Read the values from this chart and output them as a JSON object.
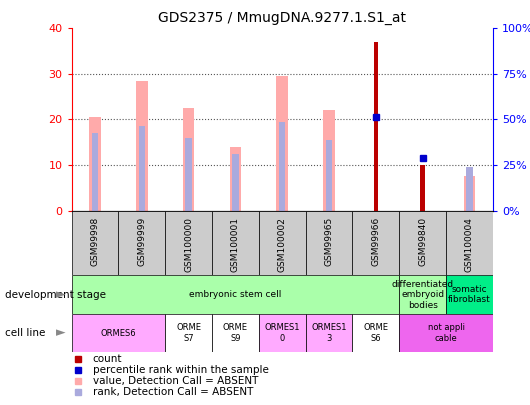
{
  "title": "GDS2375 / MmugDNA.9277.1.S1_at",
  "samples": [
    "GSM99998",
    "GSM99999",
    "GSM100000",
    "GSM100001",
    "GSM100002",
    "GSM99965",
    "GSM99966",
    "GSM99840",
    "GSM100004"
  ],
  "count_values": [
    0,
    0,
    0,
    0,
    0,
    0,
    37,
    10,
    0
  ],
  "percentile_rank_values": [
    0,
    0,
    0,
    0,
    0,
    0,
    20.5,
    11.5,
    0
  ],
  "absent_value": [
    20.5,
    28.5,
    22.5,
    14.0,
    29.5,
    22.0,
    0,
    0,
    7.5
  ],
  "absent_rank": [
    17.0,
    18.5,
    16.0,
    12.5,
    19.5,
    15.5,
    0,
    0,
    9.5
  ],
  "count_color": "#bb0000",
  "percentile_color": "#0000cc",
  "absent_value_color": "#ffaaaa",
  "absent_rank_color": "#aaaadd",
  "ylim_left": [
    0,
    40
  ],
  "ylim_right": [
    0,
    100
  ],
  "yticks_left": [
    0,
    10,
    20,
    30,
    40
  ],
  "yticks_right": [
    0,
    25,
    50,
    75,
    100
  ],
  "background_color": "#ffffff",
  "dev_stage_groups": [
    {
      "label": "embryonic stem cell",
      "start": 0,
      "end": 6,
      "color": "#aaffaa"
    },
    {
      "label": "differentiated\nembryoid\nbodies",
      "start": 7,
      "end": 7,
      "color": "#aaffaa"
    },
    {
      "label": "somatic\nfibroblast",
      "start": 8,
      "end": 8,
      "color": "#00ee88"
    }
  ],
  "cell_line_groups": [
    {
      "label": "ORMES6",
      "start": 0,
      "end": 1,
      "color": "#ffaaff"
    },
    {
      "label": "ORME\nS7",
      "start": 2,
      "end": 2,
      "color": "#ffffff"
    },
    {
      "label": "ORME\nS9",
      "start": 3,
      "end": 3,
      "color": "#ffffff"
    },
    {
      "label": "ORMES1\n0",
      "start": 4,
      "end": 4,
      "color": "#ffaaff"
    },
    {
      "label": "ORMES1\n3",
      "start": 5,
      "end": 5,
      "color": "#ffaaff"
    },
    {
      "label": "ORME\nS6",
      "start": 6,
      "end": 6,
      "color": "#ffffff"
    },
    {
      "label": "not appli\ncable",
      "start": 7,
      "end": 8,
      "color": "#ee66ee"
    }
  ],
  "legend_items": [
    {
      "color": "#bb0000",
      "label": "count"
    },
    {
      "color": "#0000cc",
      "label": "percentile rank within the sample"
    },
    {
      "color": "#ffaaaa",
      "label": "value, Detection Call = ABSENT"
    },
    {
      "color": "#aaaadd",
      "label": "rank, Detection Call = ABSENT"
    }
  ]
}
